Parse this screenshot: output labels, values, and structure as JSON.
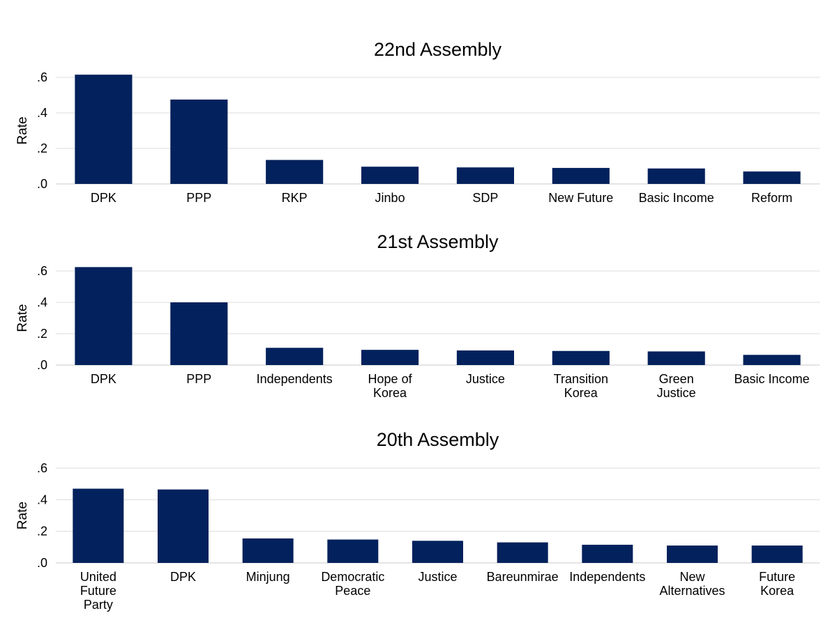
{
  "chart_data": [
    {
      "type": "bar",
      "title": "22nd Assembly",
      "ylabel": "Rate",
      "ylim": [
        0,
        0.6
      ],
      "yticks": [
        ".0",
        ".2",
        ".4",
        ".6"
      ],
      "grid": true,
      "bar_color": "#03215c",
      "categories": [
        "DPK",
        "PPP",
        "RKP",
        "Jinbo",
        "SDP",
        "New Future",
        "Basic Income",
        "Reform"
      ],
      "values": [
        0.615,
        0.475,
        0.135,
        0.097,
        0.093,
        0.09,
        0.087,
        0.07
      ]
    },
    {
      "type": "bar",
      "title": "21st Assembly",
      "ylabel": "Rate",
      "ylim": [
        0,
        0.6
      ],
      "yticks": [
        ".0",
        ".2",
        ".4",
        ".6"
      ],
      "grid": true,
      "bar_color": "#03215c",
      "categories": [
        "DPK",
        "PPP",
        "Independents",
        "Hope of Korea",
        "Justice",
        "Transition Korea",
        "Green Justice",
        "Basic Income"
      ],
      "values": [
        0.625,
        0.4,
        0.11,
        0.097,
        0.093,
        0.09,
        0.087,
        0.065
      ]
    },
    {
      "type": "bar",
      "title": "20th Assembly",
      "ylabel": "Rate",
      "ylim": [
        0,
        0.6
      ],
      "yticks": [
        ".0",
        ".2",
        ".4",
        ".6"
      ],
      "grid": true,
      "bar_color": "#03215c",
      "categories": [
        "United Future Party",
        "DPK",
        "Minjung",
        "Democratic Peace",
        "Justice",
        "Bareunmirae",
        "Independents",
        "New Alternatives",
        "Future Korea"
      ],
      "values": [
        0.47,
        0.465,
        0.155,
        0.148,
        0.14,
        0.13,
        0.115,
        0.11,
        0.11
      ]
    }
  ]
}
